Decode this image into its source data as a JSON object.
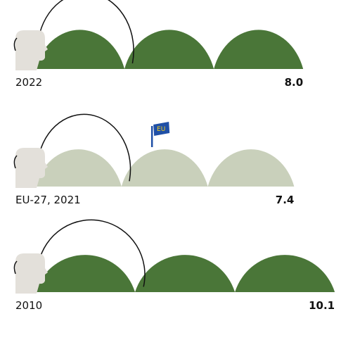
{
  "chart_data": {
    "type": "pictograph",
    "categories": [
      "2022",
      "EU-27, 2021",
      "2010"
    ],
    "values": [
      8.0,
      7.4,
      10.1
    ],
    "value_labels": [
      "8.0",
      "7.4",
      "10.1"
    ],
    "colors": [
      "#4a7638",
      "#c9d0bb",
      "#4a7638"
    ],
    "annotation": "EU"
  }
}
